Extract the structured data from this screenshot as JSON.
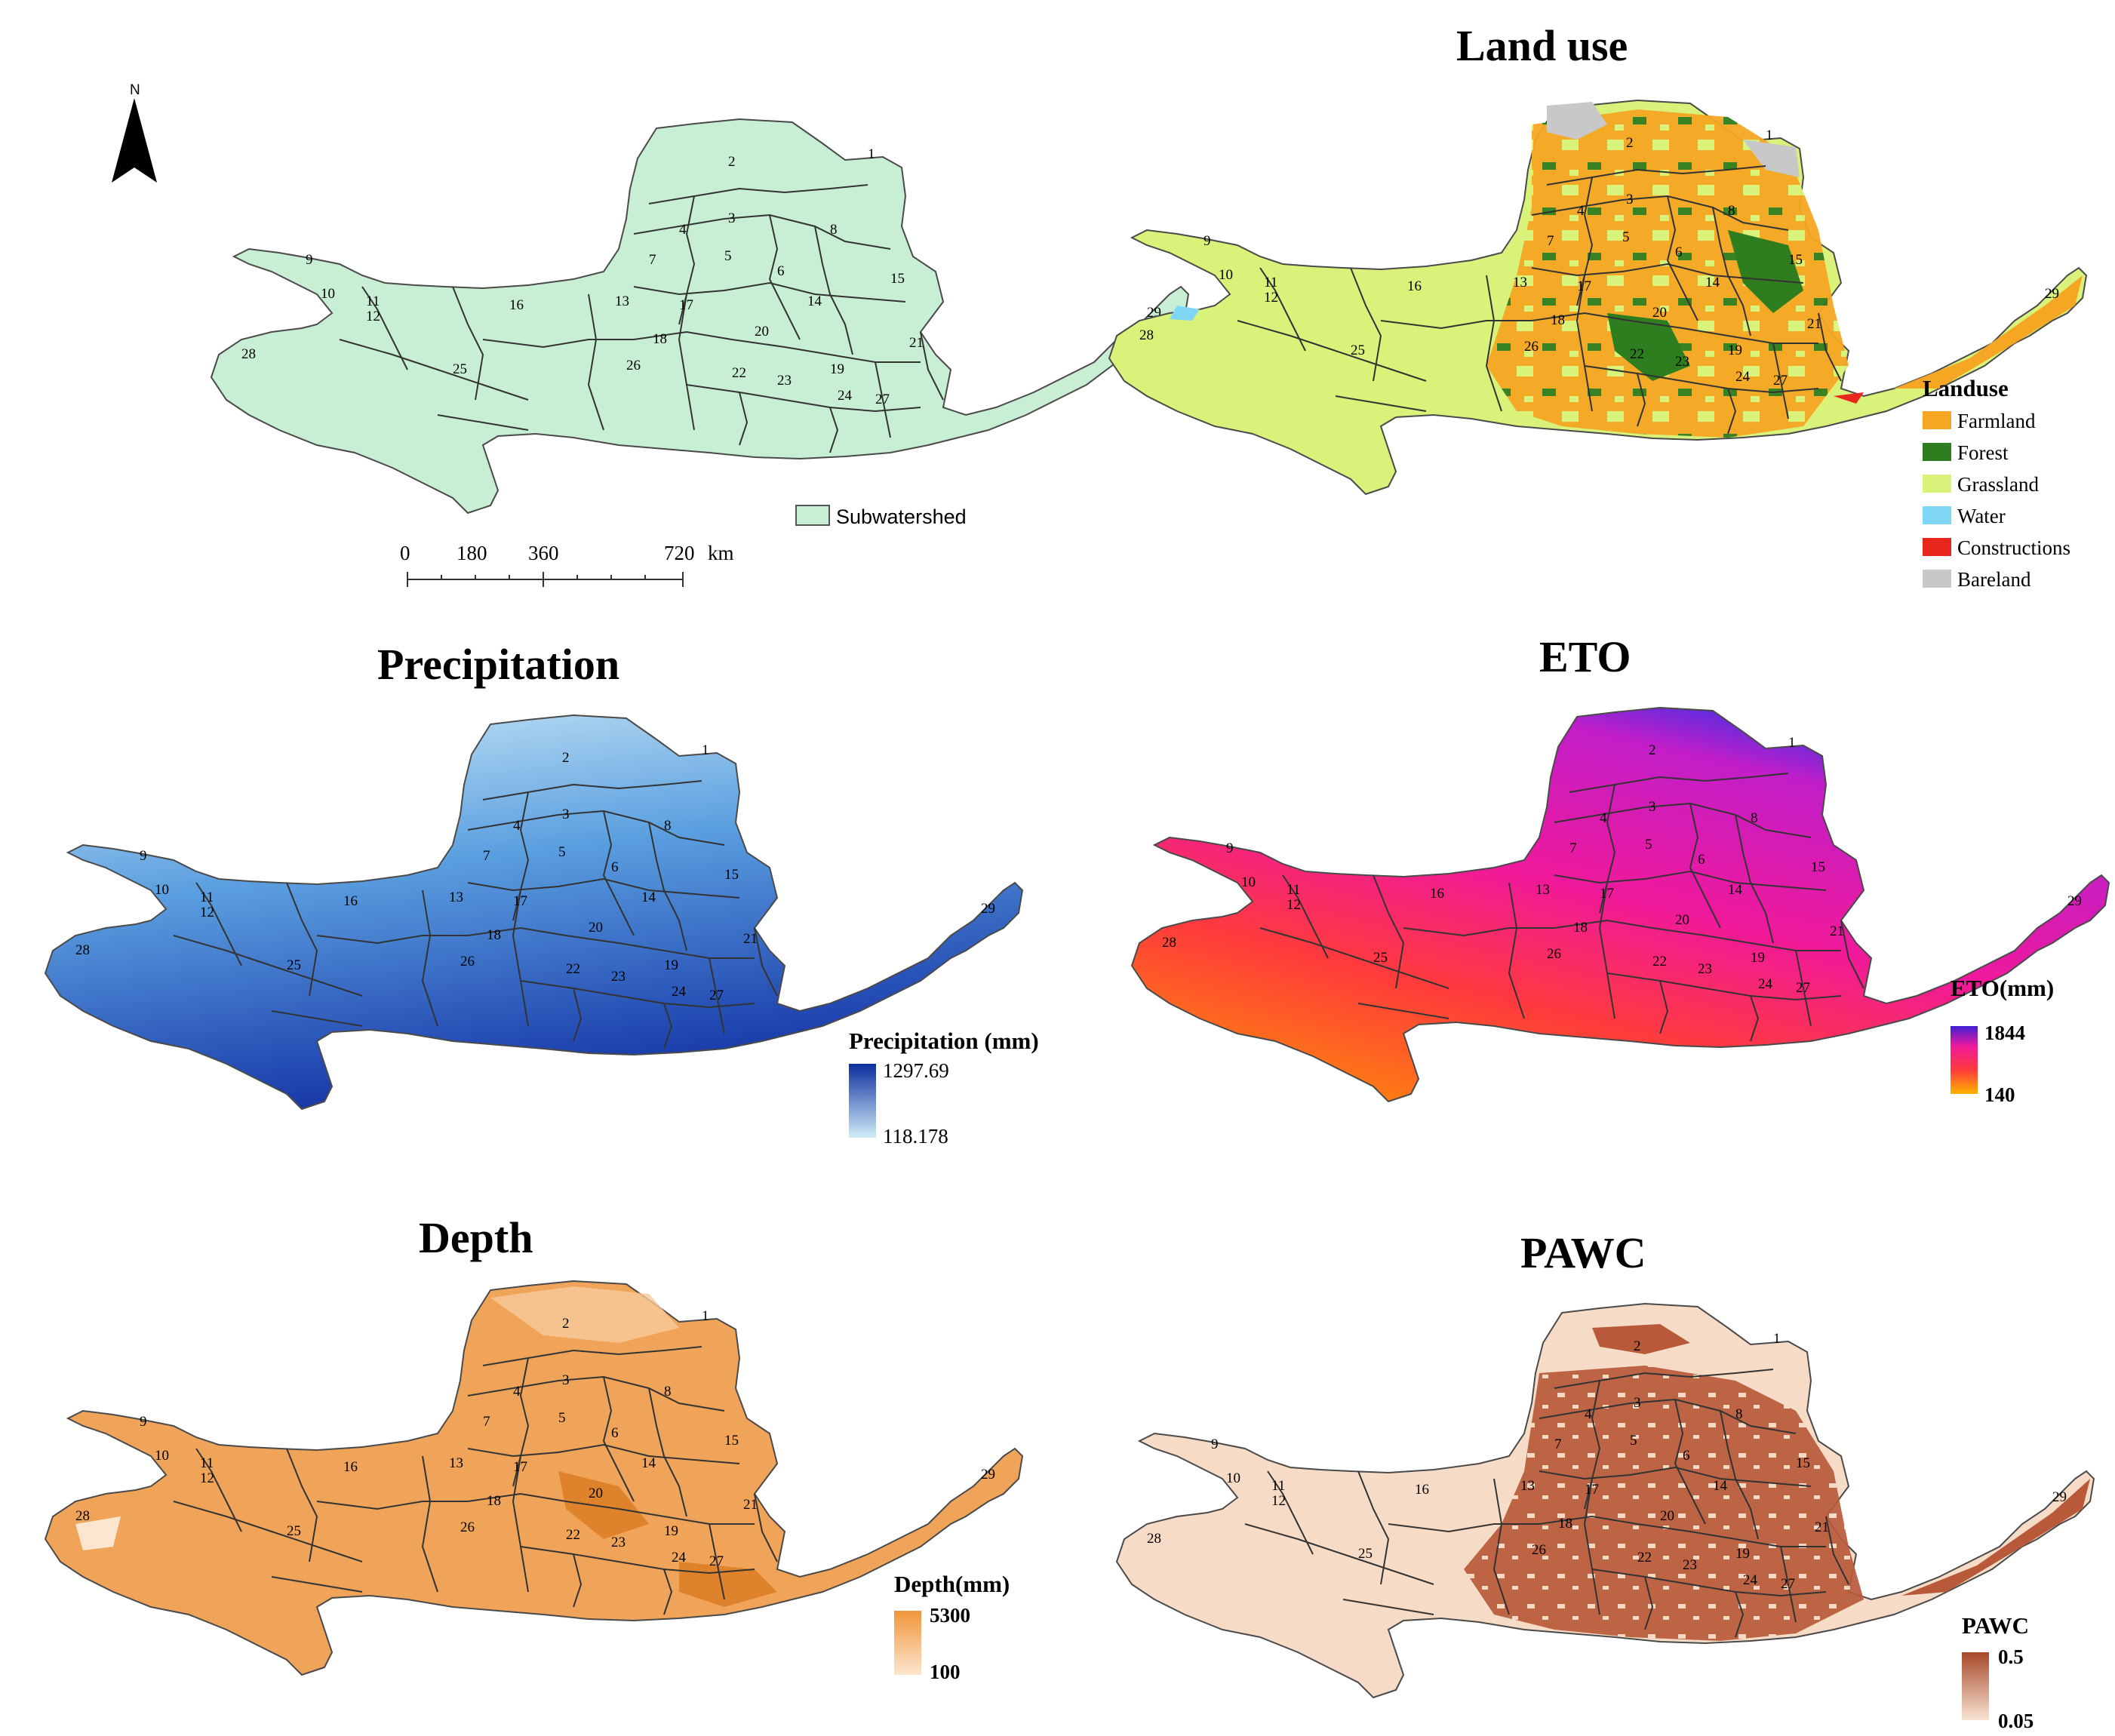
{
  "north_arrow": {
    "label": "N",
    "icon": "north-arrow-icon"
  },
  "panels": {
    "subwatershed": {
      "title": "",
      "legend_label": "Subwatershed",
      "fill": "#c8efd3",
      "scale_bar": {
        "ticks": [
          "0",
          "180",
          "360",
          "720"
        ],
        "unit": "km"
      }
    },
    "landuse": {
      "title": "Land use",
      "legend_title": "Landuse",
      "legend": [
        {
          "label": "Farmland",
          "color": "#f5a623"
        },
        {
          "label": "Forest",
          "color": "#2e7d1f"
        },
        {
          "label": "Grassland",
          "color": "#d8f27a"
        },
        {
          "label": "Water",
          "color": "#7fd6f5"
        },
        {
          "label": "Constructions",
          "color": "#e8261d"
        },
        {
          "label": "Bareland",
          "color": "#c8c8c8"
        }
      ]
    },
    "precipitation": {
      "title": "Precipitation",
      "legend_title": "Precipitation (mm)",
      "max": "1297.69",
      "min": "118.178",
      "colors": [
        "#0d2e9e",
        "#d0ecf8"
      ]
    },
    "eto": {
      "title": "ETO",
      "legend_title": "ETO(mm)",
      "max": "1844",
      "min": "140",
      "colors": [
        "#3f1fd6",
        "#f0199a",
        "#ff3b3b",
        "#ffb300"
      ]
    },
    "depth": {
      "title": "Depth",
      "legend_title": "Depth(mm)",
      "max": "5300",
      "min": "100",
      "colors": [
        "#f0963a",
        "#fde6cf"
      ]
    },
    "pawc": {
      "title": "PAWC",
      "legend_title": "PAWC",
      "max": "0.5",
      "min": "0.05",
      "colors": [
        "#a8492a",
        "#f8e4d3"
      ]
    }
  },
  "subwatershed_labels": [
    "1",
    "2",
    "3",
    "4",
    "5",
    "6",
    "7",
    "8",
    "9",
    "10",
    "11",
    "12",
    "13",
    "14",
    "15",
    "16",
    "17",
    "18",
    "19",
    "20",
    "21",
    "22",
    "23",
    "24",
    "25",
    "26",
    "27",
    "28",
    "29"
  ]
}
